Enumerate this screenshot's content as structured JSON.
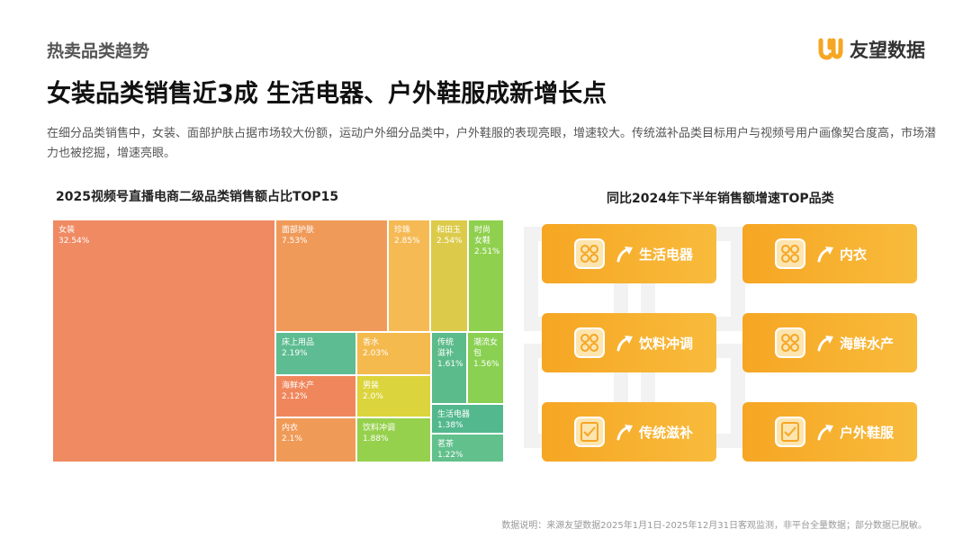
{
  "header": {
    "section_tag": "热卖品类趋势",
    "logo_text": "友望数据",
    "headline": "女装品类销售近3成  生活电器、户外鞋服成新增长点",
    "intro": "在细分品类销售中，女装、面部护肤占据市场较大份额，运动户外细分品类中，户外鞋服的表现亮眼，增速较大。传统滋补品类目标用户与视频号用户画像契合度高，市场潜力也被挖掘，增速亮眼。"
  },
  "chart_data": {
    "type": "treemap",
    "title": "2025视频号直播电商二级品类销售额占比TOP15",
    "unit": "%",
    "items": [
      {
        "name": "女装",
        "value": 32.54,
        "label": "32.54%",
        "color": "#ef8a63"
      },
      {
        "name": "面部护肤",
        "value": 7.53,
        "label": "7.53%",
        "color": "#f09a5a"
      },
      {
        "name": "珍珠",
        "value": 2.85,
        "label": "2.85%",
        "color": "#f6ba55"
      },
      {
        "name": "和田玉",
        "value": 2.54,
        "label": "2.54%",
        "color": "#dccb4a"
      },
      {
        "name": "时尚女鞋",
        "value": 2.51,
        "label": "2.51%",
        "color": "#8fd04e"
      },
      {
        "name": "床上用品",
        "value": 2.19,
        "label": "2.19%",
        "color": "#5ebc92"
      },
      {
        "name": "香水",
        "value": 2.03,
        "label": "2.03%",
        "color": "#f4ba4e"
      },
      {
        "name": "海鲜水产",
        "value": 2.12,
        "label": "2.12%",
        "color": "#f0875c"
      },
      {
        "name": "男装",
        "value": 2.0,
        "label": "2.0%",
        "color": "#dbd43c"
      },
      {
        "name": "内衣",
        "value": 2.1,
        "label": "2.1%",
        "color": "#f09a57"
      },
      {
        "name": "饮料冲调",
        "value": 1.88,
        "label": "1.88%",
        "color": "#96d14d"
      },
      {
        "name": "传统滋补",
        "value": 1.61,
        "label": "1.61%",
        "color": "#5cbb8a"
      },
      {
        "name": "潮流女包",
        "value": 1.56,
        "label": "1.56%",
        "color": "#8ad052"
      },
      {
        "name": "生活电器",
        "value": 1.38,
        "label": "1.38%",
        "color": "#54b88f"
      },
      {
        "name": "茗茶",
        "value": 1.22,
        "label": "1.22%",
        "color": "#62c08c"
      }
    ]
  },
  "growth": {
    "title": "同比2024年下半年销售额增速TOP品类",
    "cards": [
      {
        "label": "生活电器",
        "icon": "grid-icon"
      },
      {
        "label": "内衣",
        "icon": "grid-icon"
      },
      {
        "label": "饮料冲调",
        "icon": "grid-icon"
      },
      {
        "label": "海鲜水产",
        "icon": "grid-icon"
      },
      {
        "label": "传统滋补",
        "icon": "checklist-icon"
      },
      {
        "label": "户外鞋服",
        "icon": "checklist-icon"
      }
    ]
  },
  "footnote": "数据说明：来源友望数据2025年1月1日-2025年12月31日客观监测，非平台全量数据；部分数据已脱敏。"
}
